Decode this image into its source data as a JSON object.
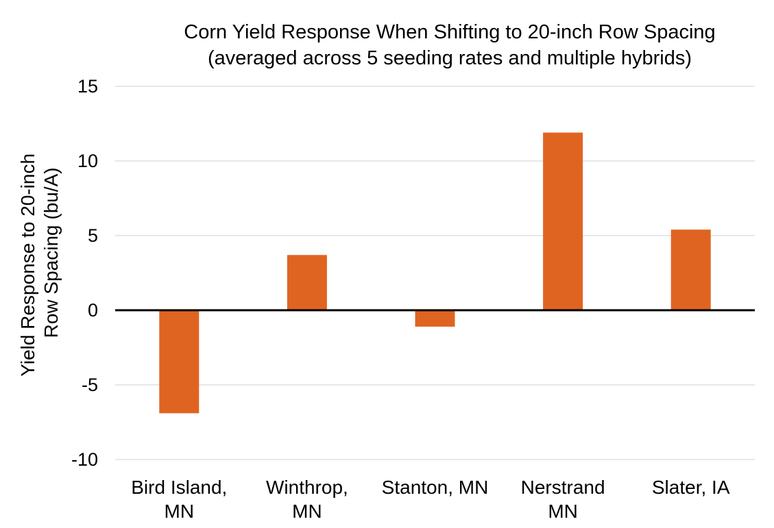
{
  "chart_data": {
    "type": "bar",
    "title": "Corn Yield Response When Shifting to 20-inch Row Spacing",
    "subtitle": "(averaged across 5 seeding rates and multiple hybrids)",
    "xlabel": "",
    "ylabel_lines": [
      "Yield Response to 20-inch",
      "Row Spacing (bu/A)"
    ],
    "categories": [
      [
        "Bird Island,",
        "MN"
      ],
      [
        "Winthrop,",
        "MN"
      ],
      [
        "Stanton, MN"
      ],
      [
        "Nerstrand",
        "MN"
      ],
      [
        "Slater, IA"
      ]
    ],
    "values": [
      -6.9,
      3.7,
      -1.1,
      11.9,
      5.4
    ],
    "ylim": [
      -10,
      15
    ],
    "yticks": [
      15,
      10,
      5,
      0,
      -5,
      -10
    ],
    "ytick_labels": [
      "15",
      "10",
      "5",
      "0",
      "-5",
      "-10"
    ],
    "grid": true,
    "legend": "none",
    "colors": {
      "bar": "#E06421",
      "grid": "#D9D9D9",
      "zero_line": "#000000"
    }
  }
}
